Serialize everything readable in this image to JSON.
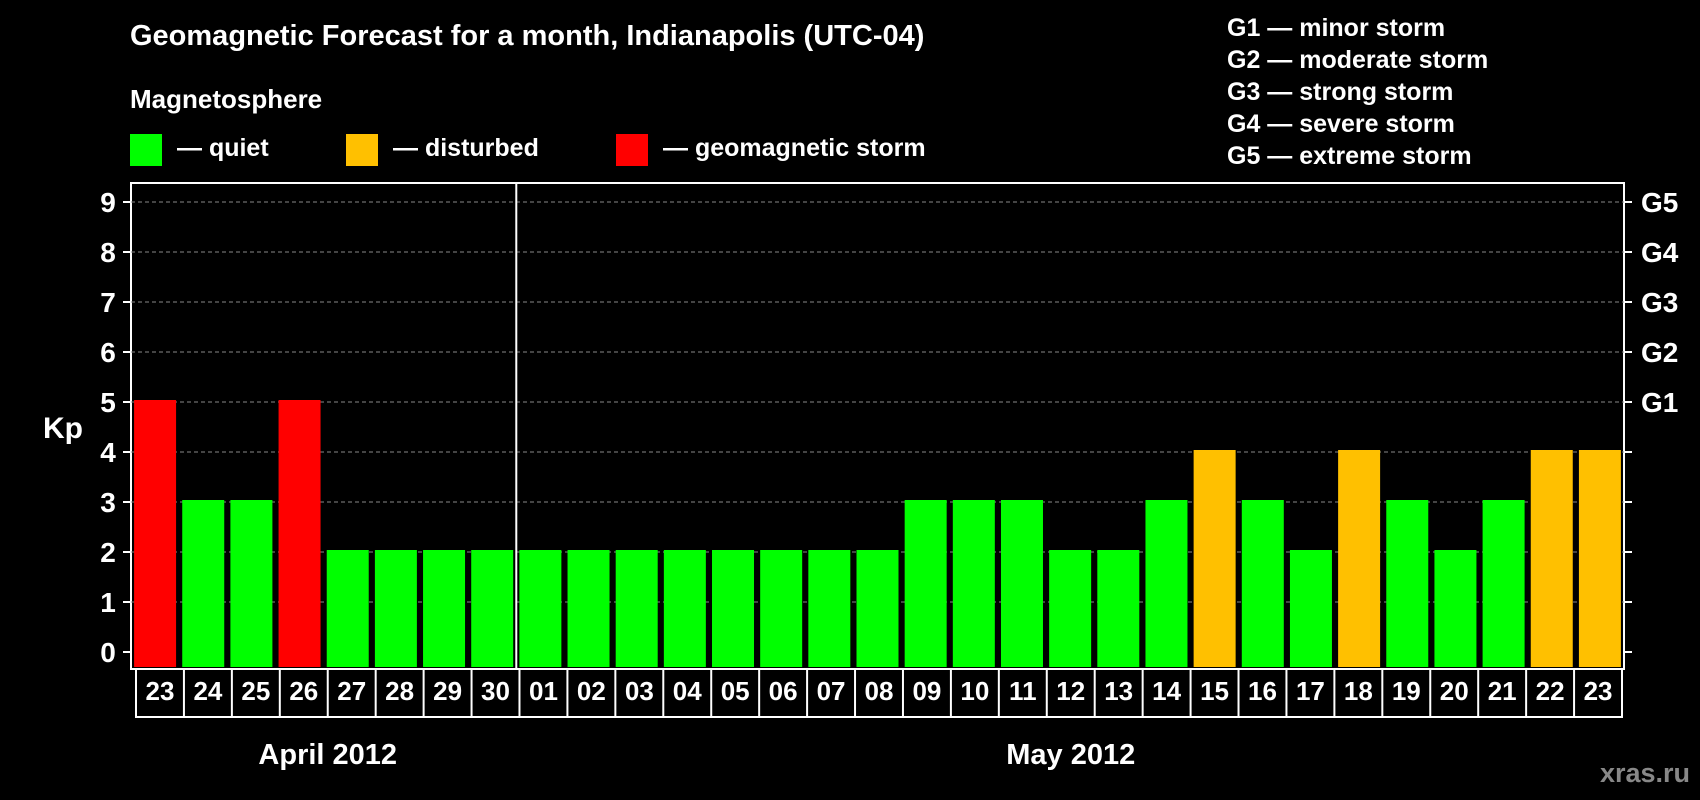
{
  "title": "Geomagnetic Forecast for a month, Indianapolis (UTC-04)",
  "subtitle": "Magnetosphere",
  "legend": [
    {
      "label": "— quiet",
      "color": "#00ff00"
    },
    {
      "label": "— disturbed",
      "color": "#ffc000"
    },
    {
      "label": "— geomagnetic storm",
      "color": "#ff0000"
    }
  ],
  "storm_scale": [
    "G1 — minor storm",
    "G2 — moderate storm",
    "G3 — strong storm",
    "G4 — severe storm",
    "G5 — extreme storm"
  ],
  "watermark": "xras.ru",
  "chart_data": {
    "type": "bar",
    "title": "Geomagnetic Forecast for a month, Indianapolis (UTC-04)",
    "ylabel": "Kp",
    "ylim": [
      0,
      9
    ],
    "yticks": [
      "0",
      "1",
      "2",
      "3",
      "4",
      "5",
      "6",
      "7",
      "8",
      "9"
    ],
    "right_ticks": [
      {
        "kp": 5,
        "label": "G1"
      },
      {
        "kp": 6,
        "label": "G2"
      },
      {
        "kp": 7,
        "label": "G3"
      },
      {
        "kp": 8,
        "label": "G4"
      },
      {
        "kp": 9,
        "label": "G5"
      }
    ],
    "categories": [
      "23",
      "24",
      "25",
      "26",
      "27",
      "28",
      "29",
      "30",
      "01",
      "02",
      "03",
      "04",
      "05",
      "06",
      "07",
      "08",
      "09",
      "10",
      "11",
      "12",
      "13",
      "14",
      "15",
      "16",
      "17",
      "18",
      "19",
      "20",
      "21",
      "22",
      "23"
    ],
    "values": [
      5,
      3,
      3,
      5,
      2,
      2,
      2,
      2,
      2,
      2,
      2,
      2,
      2,
      2,
      2,
      2,
      3,
      3,
      3,
      2,
      2,
      3,
      4,
      3,
      2,
      4,
      3,
      2,
      3,
      4,
      4
    ],
    "month_labels": [
      {
        "label": "April 2012",
        "start": 0,
        "end": 7
      },
      {
        "label": "May 2012",
        "start": 8,
        "end": 30
      }
    ],
    "month_divider_after_index": 7,
    "color_scale": {
      "quiet": "#00ff00",
      "disturbed": "#ffc000",
      "storm": "#ff0000"
    },
    "grid": true
  }
}
